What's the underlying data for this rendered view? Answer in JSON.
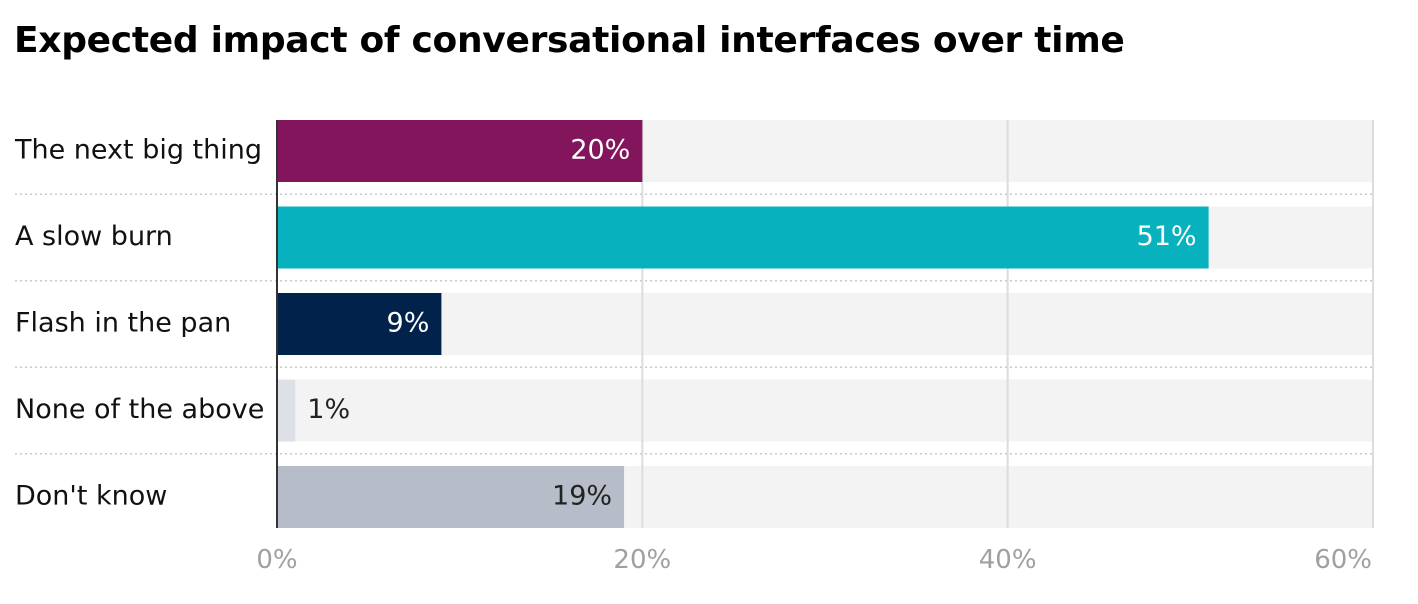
{
  "chart_data": {
    "type": "bar",
    "orientation": "horizontal",
    "title": "Expected impact of conversational interfaces over time",
    "categories": [
      "The next big thing",
      "A slow burn",
      "Flash in the pan",
      "None of the above",
      "Don't know"
    ],
    "values": [
      20,
      51,
      9,
      1,
      19
    ],
    "value_labels": [
      "20%",
      "51%",
      "9%",
      "1%",
      "19%"
    ],
    "bar_colors": [
      "#83155d",
      "#07b1bd",
      "#00224b",
      "#dde0e7",
      "#b7bcc9"
    ],
    "label_colors": [
      "#ffffff",
      "#ffffff",
      "#ffffff",
      "#222222",
      "#222222"
    ],
    "xlim": [
      0,
      60
    ],
    "x_ticks": [
      0,
      20,
      40,
      60
    ],
    "x_tick_labels": [
      "0%",
      "20%",
      "40%",
      "60%"
    ],
    "xlabel": "",
    "ylabel": "",
    "grid": true,
    "track_color": "#f3f3f3",
    "grid_color": "#dcdcdc"
  }
}
